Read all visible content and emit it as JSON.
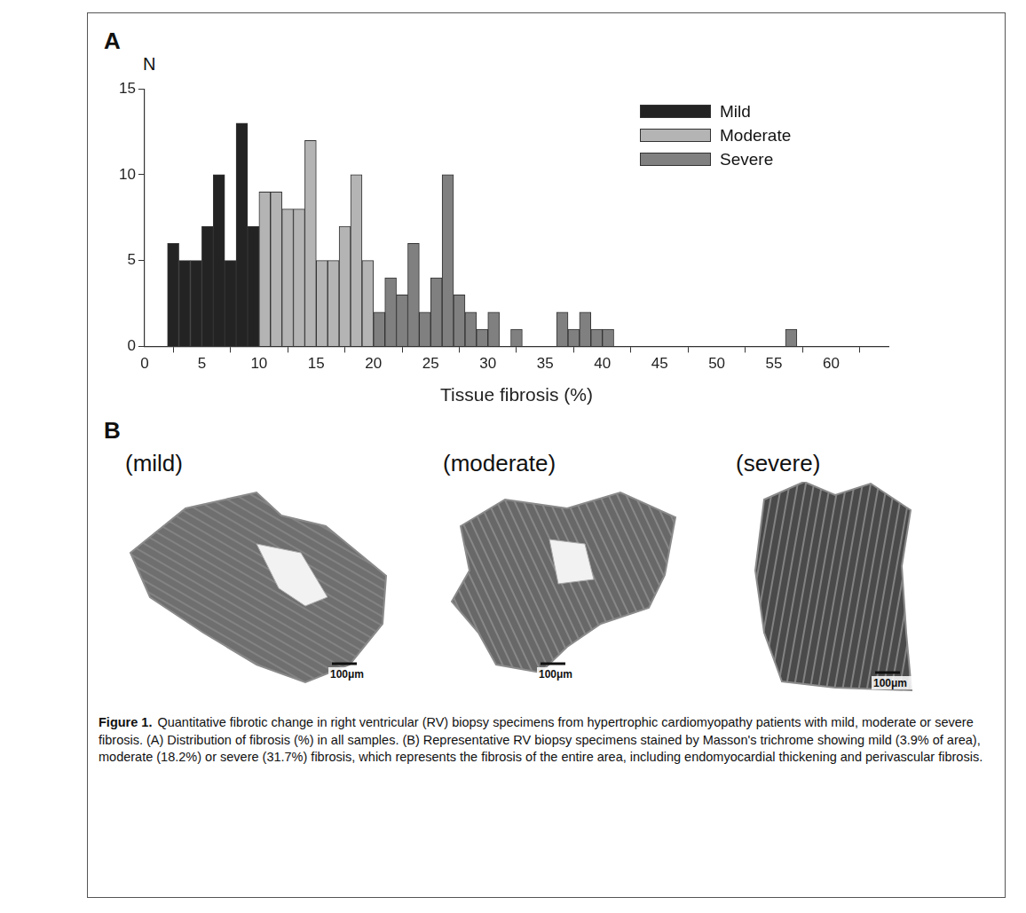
{
  "chart_data": {
    "type": "histogram",
    "panel": "A",
    "y_label": "N",
    "x_label": "Tissue fibrosis (%)",
    "series": [
      {
        "name": "Mild",
        "color": "#232323",
        "bins": [
          2,
          3,
          4,
          5,
          6,
          7,
          8,
          9,
          10
        ],
        "values": [
          6,
          5,
          5,
          7,
          10,
          5,
          13,
          7
        ]
      },
      {
        "name": "Moderate",
        "color": "#b4b4b4",
        "bins": [
          10,
          11,
          12,
          13,
          14,
          15,
          16,
          17,
          18,
          19,
          20
        ],
        "values": [
          9,
          9,
          8,
          8,
          12,
          5,
          5,
          7,
          10,
          5
        ]
      },
      {
        "name": "Severe",
        "color": "#808080",
        "bins": [
          20,
          21,
          22,
          23,
          24,
          25,
          26,
          27,
          28,
          29,
          30,
          31,
          32,
          33,
          34,
          35,
          36,
          37,
          38,
          39,
          40,
          41,
          42,
          43,
          44,
          45,
          46,
          47,
          48,
          49,
          50,
          51,
          52,
          53,
          54,
          55,
          56,
          57
        ],
        "values": [
          2,
          4,
          3,
          6,
          2,
          4,
          10,
          3,
          2,
          1,
          2,
          0,
          1,
          0,
          0,
          0,
          2,
          1,
          2,
          1,
          1,
          0,
          0,
          0,
          0,
          0,
          0,
          0,
          0,
          0,
          0,
          0,
          0,
          0,
          0,
          0,
          1
        ]
      }
    ],
    "xlim": [
      0,
      65
    ],
    "xticks": [
      0,
      5,
      10,
      15,
      20,
      25,
      30,
      35,
      40,
      45,
      50,
      55,
      60
    ],
    "ylim": [
      0,
      15
    ],
    "yticks": [
      0,
      5,
      10,
      15
    ],
    "grid": false,
    "legend": "upper right"
  },
  "panel_b": {
    "panel": "B",
    "specimens": [
      {
        "label": "(mild)",
        "scale_bar": "100μm"
      },
      {
        "label": "(moderate)",
        "scale_bar": "100μm"
      },
      {
        "label": "(severe)",
        "scale_bar": "100μm"
      }
    ]
  },
  "caption": {
    "label": "Figure 1.",
    "text": "Quantitative fibrotic change in right ventricular (RV) biopsy specimens from hypertrophic cardiomyopathy patients with mild, moderate or severe fibrosis. (A) Distribution of fibrosis (%) in all samples. (B) Representative RV biopsy specimens stained by Masson's trichrome showing mild (3.9% of area), moderate (18.2%) or severe (31.7%) fibrosis, which represents the fibrosis of the entire area, including endomyocardial thickening and perivascular fibrosis."
  }
}
